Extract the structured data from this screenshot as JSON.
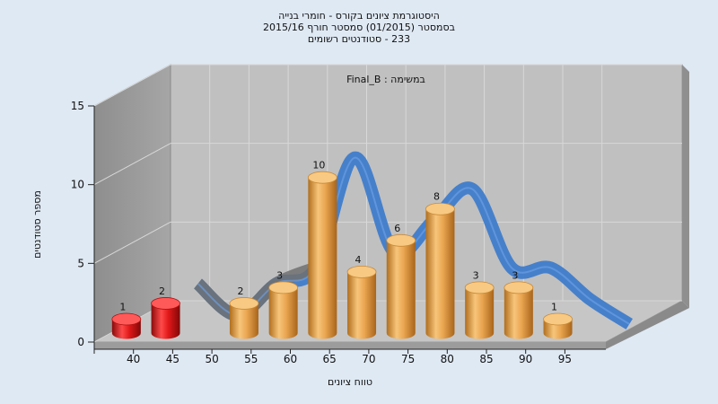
{
  "chart_data": {
    "type": "bar",
    "title_lines": [
      "היסטוגרמת ציונים בקורס - חומרי בנייה",
      "בסמסטר  (01/2015)  סמסטר חורף 2015/16",
      "233 - סטודנטים רשומים"
    ],
    "subtitle": "Final_B : במשימה",
    "xlabel": "טווח ציונים",
    "ylabel": "מספר סטודנטים",
    "ylim": [
      0,
      15
    ],
    "yticks": [
      "0",
      "5",
      "10",
      "15"
    ],
    "x_tick_labels": [
      "40",
      "45",
      "50",
      "55",
      "60",
      "65",
      "70",
      "75",
      "80",
      "85",
      "90",
      "95"
    ],
    "categories": [
      "40-45",
      "45-50",
      "50-55",
      "55-60",
      "60-65",
      "65-70",
      "70-75",
      "75-80",
      "80-85",
      "85-90",
      "90-95",
      "95-100"
    ],
    "values": [
      1,
      2,
      0,
      2,
      3,
      10,
      4,
      6,
      8,
      3,
      3,
      1
    ],
    "bar_colors": [
      "#e01818",
      "#e01818",
      "#f2b25c",
      "#f2b25c",
      "#f2b25c",
      "#f2b25c",
      "#f2b25c",
      "#f2b25c",
      "#f2b25c",
      "#f2b25c",
      "#f2b25c",
      "#f2b25c"
    ],
    "series_colors": {
      "failing": "#e01818",
      "passing": "#f2b25c",
      "trend": "#3f7ccb",
      "trend_under": "#707070"
    },
    "grid": true
  }
}
